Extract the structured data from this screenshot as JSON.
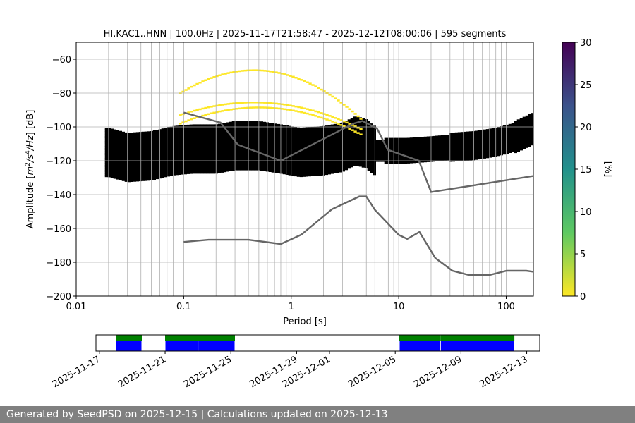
{
  "chart_data": {
    "type": "heatmap",
    "title": "HI.KAC1..HNN | 100.0Hz | 2025-11-17T21:58:47 - 2025-12-12T08:00:06 | 595 segments",
    "xlabel": "Period [s]",
    "ylabel_main": "Amplitude [",
    "ylabel_tail": "] [dB]",
    "xscale": "log",
    "xlim": [
      0.01,
      179
    ],
    "ylim": [
      -200,
      -50
    ],
    "x_ticks": [
      {
        "value": 0.01,
        "label": "0.01"
      },
      {
        "value": 0.1,
        "label": "0.1"
      },
      {
        "value": 1,
        "label": "1"
      },
      {
        "value": 10,
        "label": "10"
      },
      {
        "value": 100,
        "label": "100"
      }
    ],
    "y_ticks": [
      {
        "value": -60,
        "label": "−60"
      },
      {
        "value": -80,
        "label": "−80"
      },
      {
        "value": -100,
        "label": "−100"
      },
      {
        "value": -120,
        "label": "−120"
      },
      {
        "value": -140,
        "label": "−140"
      },
      {
        "value": -160,
        "label": "−160"
      },
      {
        "value": -180,
        "label": "−180"
      },
      {
        "value": -200,
        "label": "−200"
      }
    ],
    "grid_periods": [
      0.02,
      0.03,
      0.04,
      0.05,
      0.06,
      0.07,
      0.08,
      0.09,
      0.1,
      0.2,
      0.3,
      0.4,
      0.5,
      0.6,
      0.7,
      0.8,
      0.9,
      1,
      2,
      3,
      4,
      5,
      6,
      7,
      8,
      9,
      10,
      20,
      30,
      40,
      50,
      60,
      70,
      80,
      90,
      100
    ],
    "colorbar": {
      "label": "[%]",
      "min": 0,
      "max": 30,
      "ticks": [
        0,
        5,
        10,
        15,
        20,
        25,
        30
      ]
    },
    "mode_line": {
      "periods": [
        0.02,
        0.03,
        0.05,
        0.08,
        0.12,
        0.2,
        0.3,
        0.5,
        0.8,
        1.2,
        2,
        3,
        4,
        5,
        6,
        8,
        12,
        20,
        30,
        50,
        80,
        120,
        179
      ],
      "db": [
        -115,
        -118,
        -117,
        -114,
        -113,
        -113,
        -111,
        -111,
        -113,
        -115,
        -114,
        -112,
        -108,
        -110,
        -114,
        -114,
        -114,
        -113,
        -112,
        -111,
        -109,
        -106,
        -101
      ]
    },
    "model_high": {
      "name": "NHNM",
      "periods": [
        0.1,
        0.22,
        0.32,
        0.8,
        3.8,
        4.6,
        6.3,
        7.9,
        15.4,
        20,
        354.8
      ],
      "db": [
        -91.5,
        -97.4,
        -110.5,
        -120,
        -98,
        -96.5,
        -101,
        -113.5,
        -120,
        -138.5,
        -126
      ]
    },
    "model_low": {
      "name": "NLNM",
      "periods": [
        0.1,
        0.17,
        0.4,
        0.8,
        1.24,
        2.4,
        4.3,
        5,
        6,
        10,
        12,
        15.6,
        21.9,
        31.6,
        45,
        70,
        101,
        154,
        179
      ],
      "db": [
        -168,
        -166.7,
        -166.7,
        -169.2,
        -163.7,
        -148.6,
        -141.1,
        -141.1,
        -149,
        -163.8,
        -166.2,
        -162.1,
        -177.5,
        -185,
        -187.5,
        -187.5,
        -185,
        -185,
        -185.6
      ]
    },
    "availability": {
      "date_ticks": [
        "2025-11-17",
        "2025-11-21",
        "2025-11-25",
        "2025-11-29",
        "2025-12-01",
        "2025-12-05",
        "2025-12-09",
        "2025-12-13"
      ],
      "range": [
        "2025-11-16T19:00:00",
        "2025-12-13T19:00:00"
      ],
      "data_segments": [
        [
          "2025-11-18T00:00:00",
          "2025-11-19T14:00:00"
        ],
        [
          "2025-11-21T00:00:00",
          "2025-11-23T00:00:00"
        ],
        [
          "2025-11-23T00:00:00",
          "2025-11-25T06:00:00"
        ],
        [
          "2025-12-05T06:00:00",
          "2025-12-07T18:00:00"
        ],
        [
          "2025-12-07T18:00:00",
          "2025-12-12T06:00:00"
        ]
      ],
      "colors": {
        "data": "#0000ff",
        "coverage": "#008000"
      }
    }
  },
  "footer": "Generated by SeedPSD on 2025-12-15 | Calculations updated on 2025-12-13"
}
